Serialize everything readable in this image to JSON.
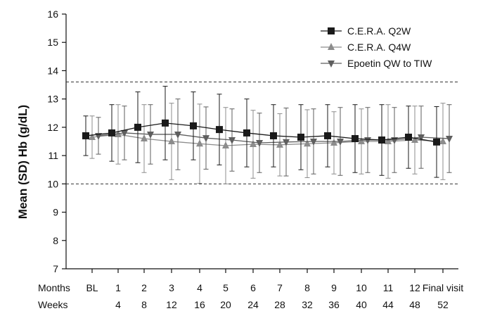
{
  "chart_data": {
    "type": "line",
    "ylabel": "Mean (SD) Hb (g/dL)",
    "ylim": [
      7,
      16
    ],
    "yticks": [
      7,
      8,
      9,
      10,
      11,
      12,
      13,
      14,
      15,
      16
    ],
    "grid": false,
    "legend_position": "top-right",
    "reference_lines": [
      10,
      13.6
    ],
    "x_row_labels": {
      "months": "Months",
      "weeks": "Weeks"
    },
    "categories": [
      "BL",
      "1",
      "2",
      "3",
      "4",
      "5",
      "6",
      "7",
      "8",
      "9",
      "10",
      "11",
      "12",
      "Final visit"
    ],
    "weeks": [
      "",
      "4",
      "8",
      "12",
      "16",
      "20",
      "24",
      "28",
      "32",
      "36",
      "40",
      "44",
      "48",
      "52"
    ],
    "series": [
      {
        "name": "C.E.R.A. Q2W",
        "marker": "square",
        "color": "#1a1a1a",
        "values": [
          11.7,
          11.8,
          12.0,
          12.15,
          12.05,
          11.92,
          11.8,
          11.7,
          11.65,
          11.7,
          11.6,
          11.55,
          11.65,
          11.48
        ],
        "sd": [
          0.7,
          1.0,
          1.25,
          1.3,
          1.2,
          1.25,
          1.2,
          1.1,
          1.15,
          1.1,
          1.2,
          1.25,
          1.1,
          1.25
        ]
      },
      {
        "name": "C.E.R.A. Q4W",
        "marker": "triangle-up",
        "color": "#8c8c8c",
        "values": [
          11.65,
          11.75,
          11.6,
          11.5,
          11.42,
          11.35,
          11.4,
          11.38,
          11.42,
          11.45,
          11.5,
          11.5,
          11.55,
          11.5
        ],
        "sd": [
          0.75,
          1.05,
          1.2,
          1.35,
          1.4,
          1.35,
          1.2,
          1.1,
          1.2,
          1.1,
          1.15,
          1.3,
          1.2,
          1.35
        ]
      },
      {
        "name": "Epoetin QW to TIW",
        "marker": "triangle-down",
        "color": "#5e5e5e",
        "values": [
          11.7,
          11.8,
          11.75,
          11.75,
          11.62,
          11.55,
          11.45,
          11.48,
          11.5,
          11.5,
          11.55,
          11.55,
          11.65,
          11.6
        ],
        "sd": [
          0.65,
          0.95,
          1.05,
          1.25,
          1.1,
          1.1,
          1.05,
          1.2,
          1.15,
          1.2,
          1.15,
          1.15,
          1.1,
          1.2
        ]
      }
    ]
  }
}
